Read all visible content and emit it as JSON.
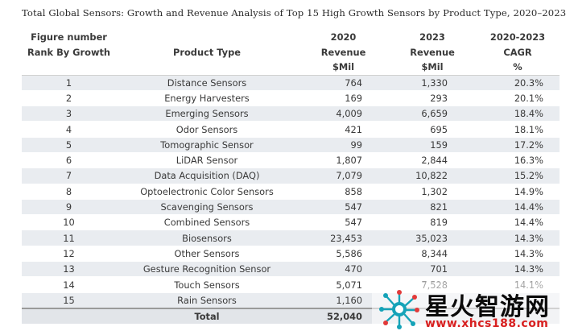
{
  "title": "Total Global Sensors: Growth and Revenue Analysis of Top 15 High Growth Sensors by Product Type, 2020–2023",
  "header": {
    "row1": [
      "Figure number",
      "",
      "2020",
      "2023",
      "2020-2023"
    ],
    "row2": [
      "Rank By Growth",
      "Product Type",
      "Revenue",
      "Revenue",
      "CAGR"
    ],
    "row3": [
      "",
      "",
      "$Mil",
      "$Mil",
      "%"
    ]
  },
  "rows": [
    {
      "rank": "1",
      "product": "Distance Sensors",
      "rev2020": "764",
      "rev2023": "1,330",
      "cagr": "20.3%"
    },
    {
      "rank": "2",
      "product": "Energy Harvesters",
      "rev2020": "169",
      "rev2023": "293",
      "cagr": "20.1%"
    },
    {
      "rank": "3",
      "product": "Emerging Sensors",
      "rev2020": "4,009",
      "rev2023": "6,659",
      "cagr": "18.4%"
    },
    {
      "rank": "4",
      "product": "Odor Sensors",
      "rev2020": "421",
      "rev2023": "695",
      "cagr": "18.1%"
    },
    {
      "rank": "5",
      "product": "Tomographic Sensor",
      "rev2020": "99",
      "rev2023": "159",
      "cagr": "17.2%"
    },
    {
      "rank": "6",
      "product": "LiDAR Sensor",
      "rev2020": "1,807",
      "rev2023": "2,844",
      "cagr": "16.3%"
    },
    {
      "rank": "7",
      "product": "Data Acquisition (DAQ)",
      "rev2020": "7,079",
      "rev2023": "10,822",
      "cagr": "15.2%"
    },
    {
      "rank": "8",
      "product": "Optoelectronic Color Sensors",
      "rev2020": "858",
      "rev2023": "1,302",
      "cagr": "14.9%"
    },
    {
      "rank": "9",
      "product": "Scavenging Sensors",
      "rev2020": "547",
      "rev2023": "821",
      "cagr": "14.4%"
    },
    {
      "rank": "10",
      "product": "Combined Sensors",
      "rev2020": "547",
      "rev2023": "819",
      "cagr": "14.4%"
    },
    {
      "rank": "11",
      "product": "Biosensors",
      "rev2020": "23,453",
      "rev2023": "35,023",
      "cagr": "14.3%"
    },
    {
      "rank": "12",
      "product": "Other Sensors",
      "rev2020": "5,586",
      "rev2023": "8,344",
      "cagr": "14.3%"
    },
    {
      "rank": "13",
      "product": "Gesture Recognition Sensor",
      "rev2020": "470",
      "rev2023": "701",
      "cagr": "14.3%"
    },
    {
      "rank": "14",
      "product": "Touch Sensors",
      "rev2020": "5,071",
      "rev2023": "7,528",
      "cagr": "14.1%"
    },
    {
      "rank": "15",
      "product": "Rain Sensors",
      "rev2020": "1,160",
      "rev2023": "",
      "cagr": ""
    }
  ],
  "total": {
    "label": "Total",
    "rev2020": "52,040"
  },
  "watermark": {
    "name": "星火智游网",
    "url": "www.xhcs188.com"
  },
  "colors": {
    "stripe": "#e9ecf0",
    "total_bg": "#e2e5e9",
    "watermark_url": "#d82020"
  }
}
